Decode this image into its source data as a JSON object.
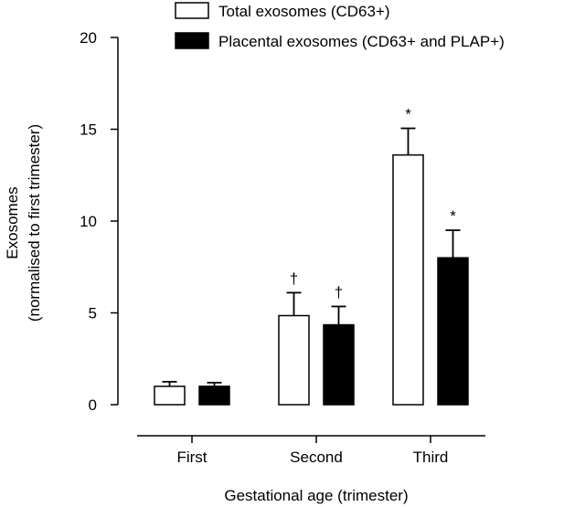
{
  "chart_data": {
    "type": "bar",
    "title": "",
    "xlabel": "Gestational age (trimester)",
    "ylabel_lines": [
      "Exosomes",
      "(normalised to first trimester)"
    ],
    "categories": [
      "First",
      "Second",
      "Third"
    ],
    "ylim": [
      0,
      20
    ],
    "yticks": [
      0,
      5,
      10,
      15,
      20
    ],
    "grid": false,
    "legend_position": "top",
    "series": [
      {
        "name": "Total exosomes (CD63+)",
        "fill": "#ffffff",
        "values": [
          1.0,
          4.85,
          13.6
        ],
        "errors": [
          0.25,
          1.25,
          1.45
        ],
        "markers": [
          "",
          "†",
          "*"
        ]
      },
      {
        "name": "Placental exosomes (CD63+ and PLAP+)",
        "fill": "#000000",
        "values": [
          1.0,
          4.35,
          8.0
        ],
        "errors": [
          0.2,
          1.0,
          1.5
        ],
        "markers": [
          "",
          "†",
          "*"
        ]
      }
    ]
  }
}
